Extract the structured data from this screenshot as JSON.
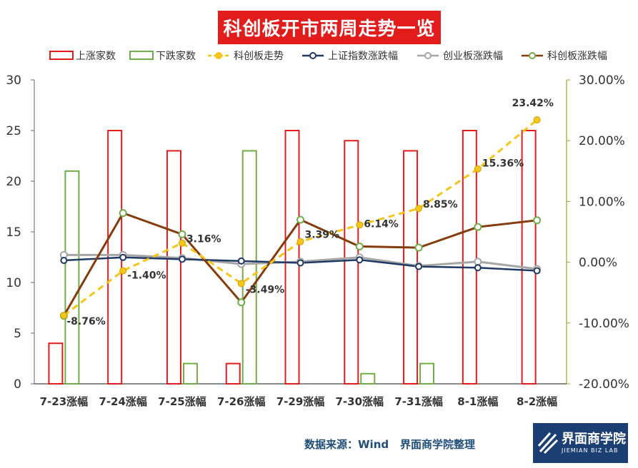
{
  "title": "科创板开市两周走势一览",
  "footer": {
    "source": "数据来源：Wind",
    "org": "界面商学院整理"
  },
  "logo": {
    "text": "界面商学院",
    "sub": "JIEMIAN BIZ LAB"
  },
  "colors": {
    "up_bar": "#e21b1b",
    "down_bar": "#70ad47",
    "kc_trend": "#f5c518",
    "sh_index": "#1f3864",
    "cy_board": "#a6a6a6",
    "kc_change": "#843c0c",
    "right_axis": "#9aa62e"
  },
  "chart_data": {
    "type": "bar",
    "categories": [
      "7-23涨幅",
      "7-24涨幅",
      "7-25涨幅",
      "7-26涨幅",
      "7-29涨幅",
      "7-30涨幅",
      "7-31涨幅",
      "8-1涨幅",
      "8-2涨幅"
    ],
    "y_left": {
      "min": 0,
      "max": 30,
      "ticks": [
        "0",
        "5",
        "10",
        "15",
        "20",
        "25",
        "30"
      ]
    },
    "y_right": {
      "min": -20,
      "max": 30,
      "ticks": [
        "-20.00%",
        "-10.00%",
        "0.00%",
        "10.00%",
        "20.00%",
        "30.00%"
      ]
    },
    "series": [
      {
        "name": "上涨家数",
        "kind": "bar",
        "axis": "left",
        "values": [
          4,
          25,
          23,
          2,
          25,
          24,
          23,
          25,
          25
        ]
      },
      {
        "name": "下跌家数",
        "kind": "bar",
        "axis": "left",
        "values": [
          21,
          0,
          2,
          23,
          0,
          1,
          2,
          0,
          0
        ]
      },
      {
        "name": "科创板走势",
        "kind": "dashed-line",
        "axis": "right",
        "values": [
          -8.76,
          -1.4,
          3.16,
          -3.49,
          3.39,
          6.14,
          8.85,
          15.36,
          23.42
        ],
        "labels": [
          "-8.76%",
          "-1.40%",
          "3.16%",
          "-3.49%",
          "3.39%",
          "6.14%",
          "8.85%",
          "15.36%",
          "23.42%"
        ]
      },
      {
        "name": "上证指数涨跌幅",
        "kind": "line",
        "axis": "right",
        "values": [
          0.3,
          0.8,
          0.5,
          0.2,
          -0.1,
          0.4,
          -0.7,
          -0.9,
          -1.4
        ]
      },
      {
        "name": "创业板涨跌幅",
        "kind": "line",
        "axis": "right",
        "values": [
          1.2,
          1.2,
          0.7,
          -0.3,
          0.1,
          0.8,
          -0.6,
          0.1,
          -1.1
        ]
      },
      {
        "name": "科创板涨跌幅",
        "kind": "line",
        "axis": "right",
        "values": [
          -8.8,
          8.1,
          4.6,
          -6.6,
          7.0,
          2.6,
          2.4,
          5.8,
          6.9
        ]
      }
    ],
    "legend": "top"
  }
}
